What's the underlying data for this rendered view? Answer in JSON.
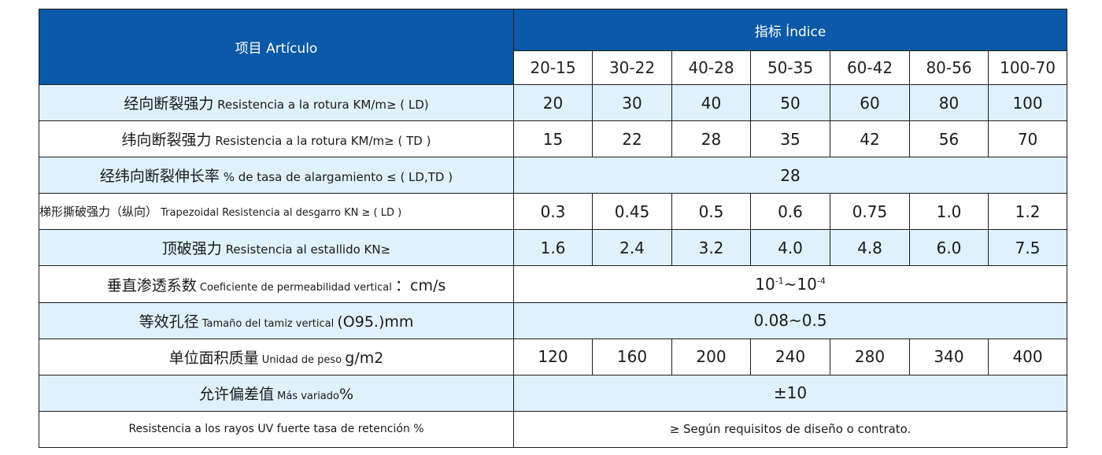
{
  "header": {
    "item_label": "项目 Artículo",
    "index_label": "指标 Índice",
    "grades": [
      "20-15",
      "30-22",
      "40-28",
      "50-35",
      "60-42",
      "80-56",
      "100-70"
    ]
  },
  "rows": [
    {
      "label_zh": "经向断裂强力",
      "label_es": " Resistencia a la rotura KM/m≥ ( LD)",
      "values": [
        "20",
        "30",
        "40",
        "50",
        "60",
        "80",
        "100"
      ]
    },
    {
      "label_zh": "纬向断裂强力",
      "label_es": " Resistencia a la rotura KM/m≥ ( TD )",
      "values": [
        "15",
        "22",
        "28",
        "35",
        "42",
        "56",
        "70"
      ]
    },
    {
      "label_zh": "经纬向断裂伸长率",
      "label_es": " % de tasa de alargamiento ≤ ( LD,TD )",
      "value": "28"
    },
    {
      "label_zh": "梯形撕破强力（纵向）",
      "label_es": " Trapezoidal Resistencia al desgarro KN ≥ ( LD )",
      "values": [
        "0.3",
        "0.45",
        "0.5",
        "0.6",
        "0.75",
        "1.0",
        "1.2"
      ]
    },
    {
      "label_zh": "顶破强力",
      "label_es": "  Resistencia al estallido  KN≥",
      "values": [
        "1.6",
        "2.4",
        "3.2",
        "4.0",
        "4.8",
        "6.0",
        "7.5"
      ]
    },
    {
      "label_zh": "垂直渗透系数",
      "label_es": "  Coeficiente de permeabilidad vertical ",
      "label_unit": "：cm/s",
      "value_base1": "10",
      "value_exp1": "-1",
      "value_sep": "~",
      "value_base2": "10",
      "value_exp2": "-4"
    },
    {
      "label_zh": "等效孔径",
      "label_es": " Tamaño del tamiz vertical ",
      "label_unit": " (O95.)mm",
      "value": "0.08~0.5"
    },
    {
      "label_zh": "单位面积质量",
      "label_es": "  Unidad de peso ",
      "label_unit": " g/m2",
      "values": [
        "120",
        "160",
        "200",
        "240",
        "280",
        "340",
        "400"
      ]
    },
    {
      "label_zh": "允许偏差值",
      "label_es": " Más variado",
      "label_unit": "%",
      "value": "±10"
    },
    {
      "label": "Resistencia a los rayos UV fuerte tasa de retención %",
      "value": "≥  Según requisitos de diseño o contrato."
    }
  ],
  "colors": {
    "header_bg": "#0b59a8",
    "band_bg": "#dff1fb",
    "border": "#1d1d1d"
  }
}
